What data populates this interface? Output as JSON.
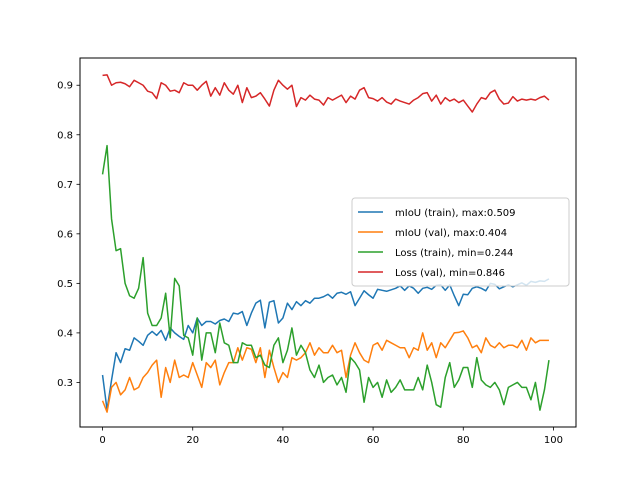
{
  "chart_data": {
    "type": "line",
    "title": "",
    "xlabel": "",
    "ylabel": "",
    "xlim": [
      -5,
      105
    ],
    "ylim": [
      0.21,
      0.955
    ],
    "xticks": [
      0,
      20,
      40,
      60,
      80,
      100
    ],
    "yticks": [
      0.3,
      0.4,
      0.5,
      0.6,
      0.7,
      0.8,
      0.9
    ],
    "grid": false,
    "legend_position": "center-right",
    "x": [
      0,
      1,
      2,
      3,
      4,
      5,
      6,
      7,
      8,
      9,
      10,
      11,
      12,
      13,
      14,
      15,
      16,
      17,
      18,
      19,
      20,
      21,
      22,
      23,
      24,
      25,
      26,
      27,
      28,
      29,
      30,
      31,
      32,
      33,
      34,
      35,
      36,
      37,
      38,
      39,
      40,
      41,
      42,
      43,
      44,
      45,
      46,
      47,
      48,
      49,
      50,
      51,
      52,
      53,
      54,
      55,
      56,
      57,
      58,
      59,
      60,
      61,
      62,
      63,
      64,
      65,
      66,
      67,
      68,
      69,
      70,
      71,
      72,
      73,
      74,
      75,
      76,
      77,
      78,
      79,
      80,
      81,
      82,
      83,
      84,
      85,
      86,
      87,
      88,
      89,
      90,
      91,
      92,
      93,
      94,
      95,
      96,
      97,
      98,
      99
    ],
    "series": [
      {
        "name": "mIoU (train), max:0.509",
        "color": "#1f77b4",
        "values": [
          0.315,
          0.245,
          0.305,
          0.36,
          0.34,
          0.368,
          0.365,
          0.39,
          0.383,
          0.375,
          0.395,
          0.403,
          0.395,
          0.405,
          0.385,
          0.41,
          0.4,
          0.393,
          0.387,
          0.415,
          0.4,
          0.43,
          0.415,
          0.423,
          0.423,
          0.418,
          0.425,
          0.428,
          0.423,
          0.44,
          0.438,
          0.443,
          0.415,
          0.44,
          0.46,
          0.466,
          0.41,
          0.462,
          0.465,
          0.42,
          0.43,
          0.46,
          0.447,
          0.463,
          0.455,
          0.465,
          0.46,
          0.47,
          0.47,
          0.473,
          0.478,
          0.47,
          0.48,
          0.482,
          0.478,
          0.483,
          0.455,
          0.47,
          0.485,
          0.477,
          0.47,
          0.488,
          0.486,
          0.484,
          0.487,
          0.49,
          0.495,
          0.486,
          0.495,
          0.49,
          0.48,
          0.49,
          0.492,
          0.488,
          0.496,
          0.497,
          0.486,
          0.497,
          0.475,
          0.455,
          0.478,
          0.477,
          0.49,
          0.493,
          0.49,
          0.485,
          0.5,
          0.498,
          0.489,
          0.493,
          0.497,
          0.493,
          0.497,
          0.501,
          0.496,
          0.504,
          0.502,
          0.505,
          0.504,
          0.509
        ]
      },
      {
        "name": "mIoU (val), max:0.404",
        "color": "#ff7f0e",
        "values": [
          0.263,
          0.24,
          0.29,
          0.3,
          0.275,
          0.285,
          0.31,
          0.285,
          0.29,
          0.31,
          0.32,
          0.335,
          0.345,
          0.27,
          0.33,
          0.3,
          0.345,
          0.31,
          0.315,
          0.31,
          0.34,
          0.315,
          0.29,
          0.34,
          0.33,
          0.345,
          0.295,
          0.32,
          0.34,
          0.34,
          0.37,
          0.345,
          0.37,
          0.367,
          0.34,
          0.37,
          0.31,
          0.365,
          0.33,
          0.3,
          0.32,
          0.31,
          0.35,
          0.345,
          0.35,
          0.36,
          0.38,
          0.355,
          0.37,
          0.36,
          0.36,
          0.375,
          0.36,
          0.365,
          0.31,
          0.355,
          0.38,
          0.36,
          0.345,
          0.34,
          0.375,
          0.38,
          0.365,
          0.385,
          0.38,
          0.375,
          0.37,
          0.37,
          0.35,
          0.37,
          0.365,
          0.4,
          0.365,
          0.38,
          0.35,
          0.38,
          0.37,
          0.385,
          0.4,
          0.401,
          0.404,
          0.39,
          0.37,
          0.375,
          0.36,
          0.39,
          0.375,
          0.37,
          0.38,
          0.37,
          0.375,
          0.375,
          0.37,
          0.385,
          0.365,
          0.39,
          0.38,
          0.385,
          0.385,
          0.385
        ]
      },
      {
        "name": "Loss (train), min=0.244",
        "color": "#2ca02c",
        "values": [
          0.72,
          0.778,
          0.63,
          0.566,
          0.57,
          0.5,
          0.475,
          0.47,
          0.49,
          0.552,
          0.44,
          0.415,
          0.415,
          0.43,
          0.48,
          0.39,
          0.51,
          0.495,
          0.395,
          0.39,
          0.355,
          0.43,
          0.345,
          0.4,
          0.4,
          0.36,
          0.42,
          0.38,
          0.375,
          0.34,
          0.34,
          0.38,
          0.375,
          0.375,
          0.35,
          0.355,
          0.335,
          0.33,
          0.375,
          0.39,
          0.34,
          0.365,
          0.41,
          0.355,
          0.375,
          0.36,
          0.325,
          0.31,
          0.335,
          0.3,
          0.31,
          0.315,
          0.295,
          0.31,
          0.28,
          0.35,
          0.34,
          0.325,
          0.26,
          0.31,
          0.29,
          0.3,
          0.27,
          0.305,
          0.28,
          0.29,
          0.305,
          0.285,
          0.285,
          0.285,
          0.31,
          0.285,
          0.335,
          0.3,
          0.255,
          0.25,
          0.31,
          0.34,
          0.29,
          0.305,
          0.33,
          0.33,
          0.29,
          0.35,
          0.305,
          0.295,
          0.29,
          0.3,
          0.285,
          0.255,
          0.29,
          0.295,
          0.3,
          0.29,
          0.29,
          0.265,
          0.3,
          0.244,
          0.285,
          0.345
        ]
      },
      {
        "name": "Loss (val), min=0.846",
        "color": "#d62728",
        "values": [
          0.92,
          0.921,
          0.9,
          0.905,
          0.906,
          0.903,
          0.897,
          0.91,
          0.905,
          0.9,
          0.888,
          0.885,
          0.873,
          0.905,
          0.9,
          0.888,
          0.89,
          0.885,
          0.905,
          0.9,
          0.9,
          0.89,
          0.9,
          0.908,
          0.878,
          0.895,
          0.88,
          0.905,
          0.89,
          0.882,
          0.9,
          0.865,
          0.895,
          0.875,
          0.878,
          0.885,
          0.872,
          0.858,
          0.89,
          0.91,
          0.9,
          0.892,
          0.9,
          0.857,
          0.875,
          0.87,
          0.88,
          0.872,
          0.87,
          0.86,
          0.875,
          0.87,
          0.875,
          0.88,
          0.865,
          0.878,
          0.872,
          0.89,
          0.895,
          0.875,
          0.873,
          0.868,
          0.875,
          0.866,
          0.862,
          0.872,
          0.868,
          0.865,
          0.862,
          0.87,
          0.875,
          0.883,
          0.885,
          0.868,
          0.88,
          0.862,
          0.875,
          0.868,
          0.872,
          0.865,
          0.87,
          0.858,
          0.846,
          0.862,
          0.875,
          0.872,
          0.885,
          0.89,
          0.872,
          0.862,
          0.864,
          0.877,
          0.868,
          0.872,
          0.87,
          0.872,
          0.87,
          0.875,
          0.878,
          0.87
        ]
      }
    ]
  }
}
